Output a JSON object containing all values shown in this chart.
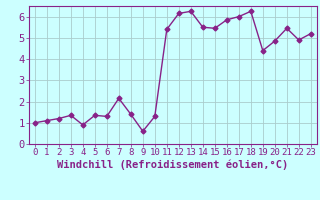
{
  "x": [
    0,
    1,
    2,
    3,
    4,
    5,
    6,
    7,
    8,
    9,
    10,
    11,
    12,
    13,
    14,
    15,
    16,
    17,
    18,
    19,
    20,
    21,
    22,
    23
  ],
  "y": [
    1.0,
    1.1,
    1.2,
    1.35,
    0.9,
    1.35,
    1.3,
    2.15,
    1.4,
    0.6,
    1.3,
    5.4,
    6.15,
    6.25,
    5.5,
    5.45,
    5.85,
    6.0,
    6.25,
    4.4,
    4.85,
    5.45,
    4.9,
    5.2
  ],
  "line_color": "#882288",
  "marker": "D",
  "marker_size": 2.5,
  "line_width": 1.0,
  "bg_color": "#ccffff",
  "grid_color": "#aacccc",
  "xlabel": "Windchill (Refroidissement éolien,°C)",
  "ylabel": "",
  "xlim": [
    -0.5,
    23.5
  ],
  "ylim": [
    0,
    6.5
  ],
  "yticks": [
    0,
    1,
    2,
    3,
    4,
    5,
    6
  ],
  "xticks": [
    0,
    1,
    2,
    3,
    4,
    5,
    6,
    7,
    8,
    9,
    10,
    11,
    12,
    13,
    14,
    15,
    16,
    17,
    18,
    19,
    20,
    21,
    22,
    23
  ],
  "tick_color": "#882288",
  "label_color": "#882288",
  "tick_fontsize": 6.5,
  "xlabel_fontsize": 7.5
}
